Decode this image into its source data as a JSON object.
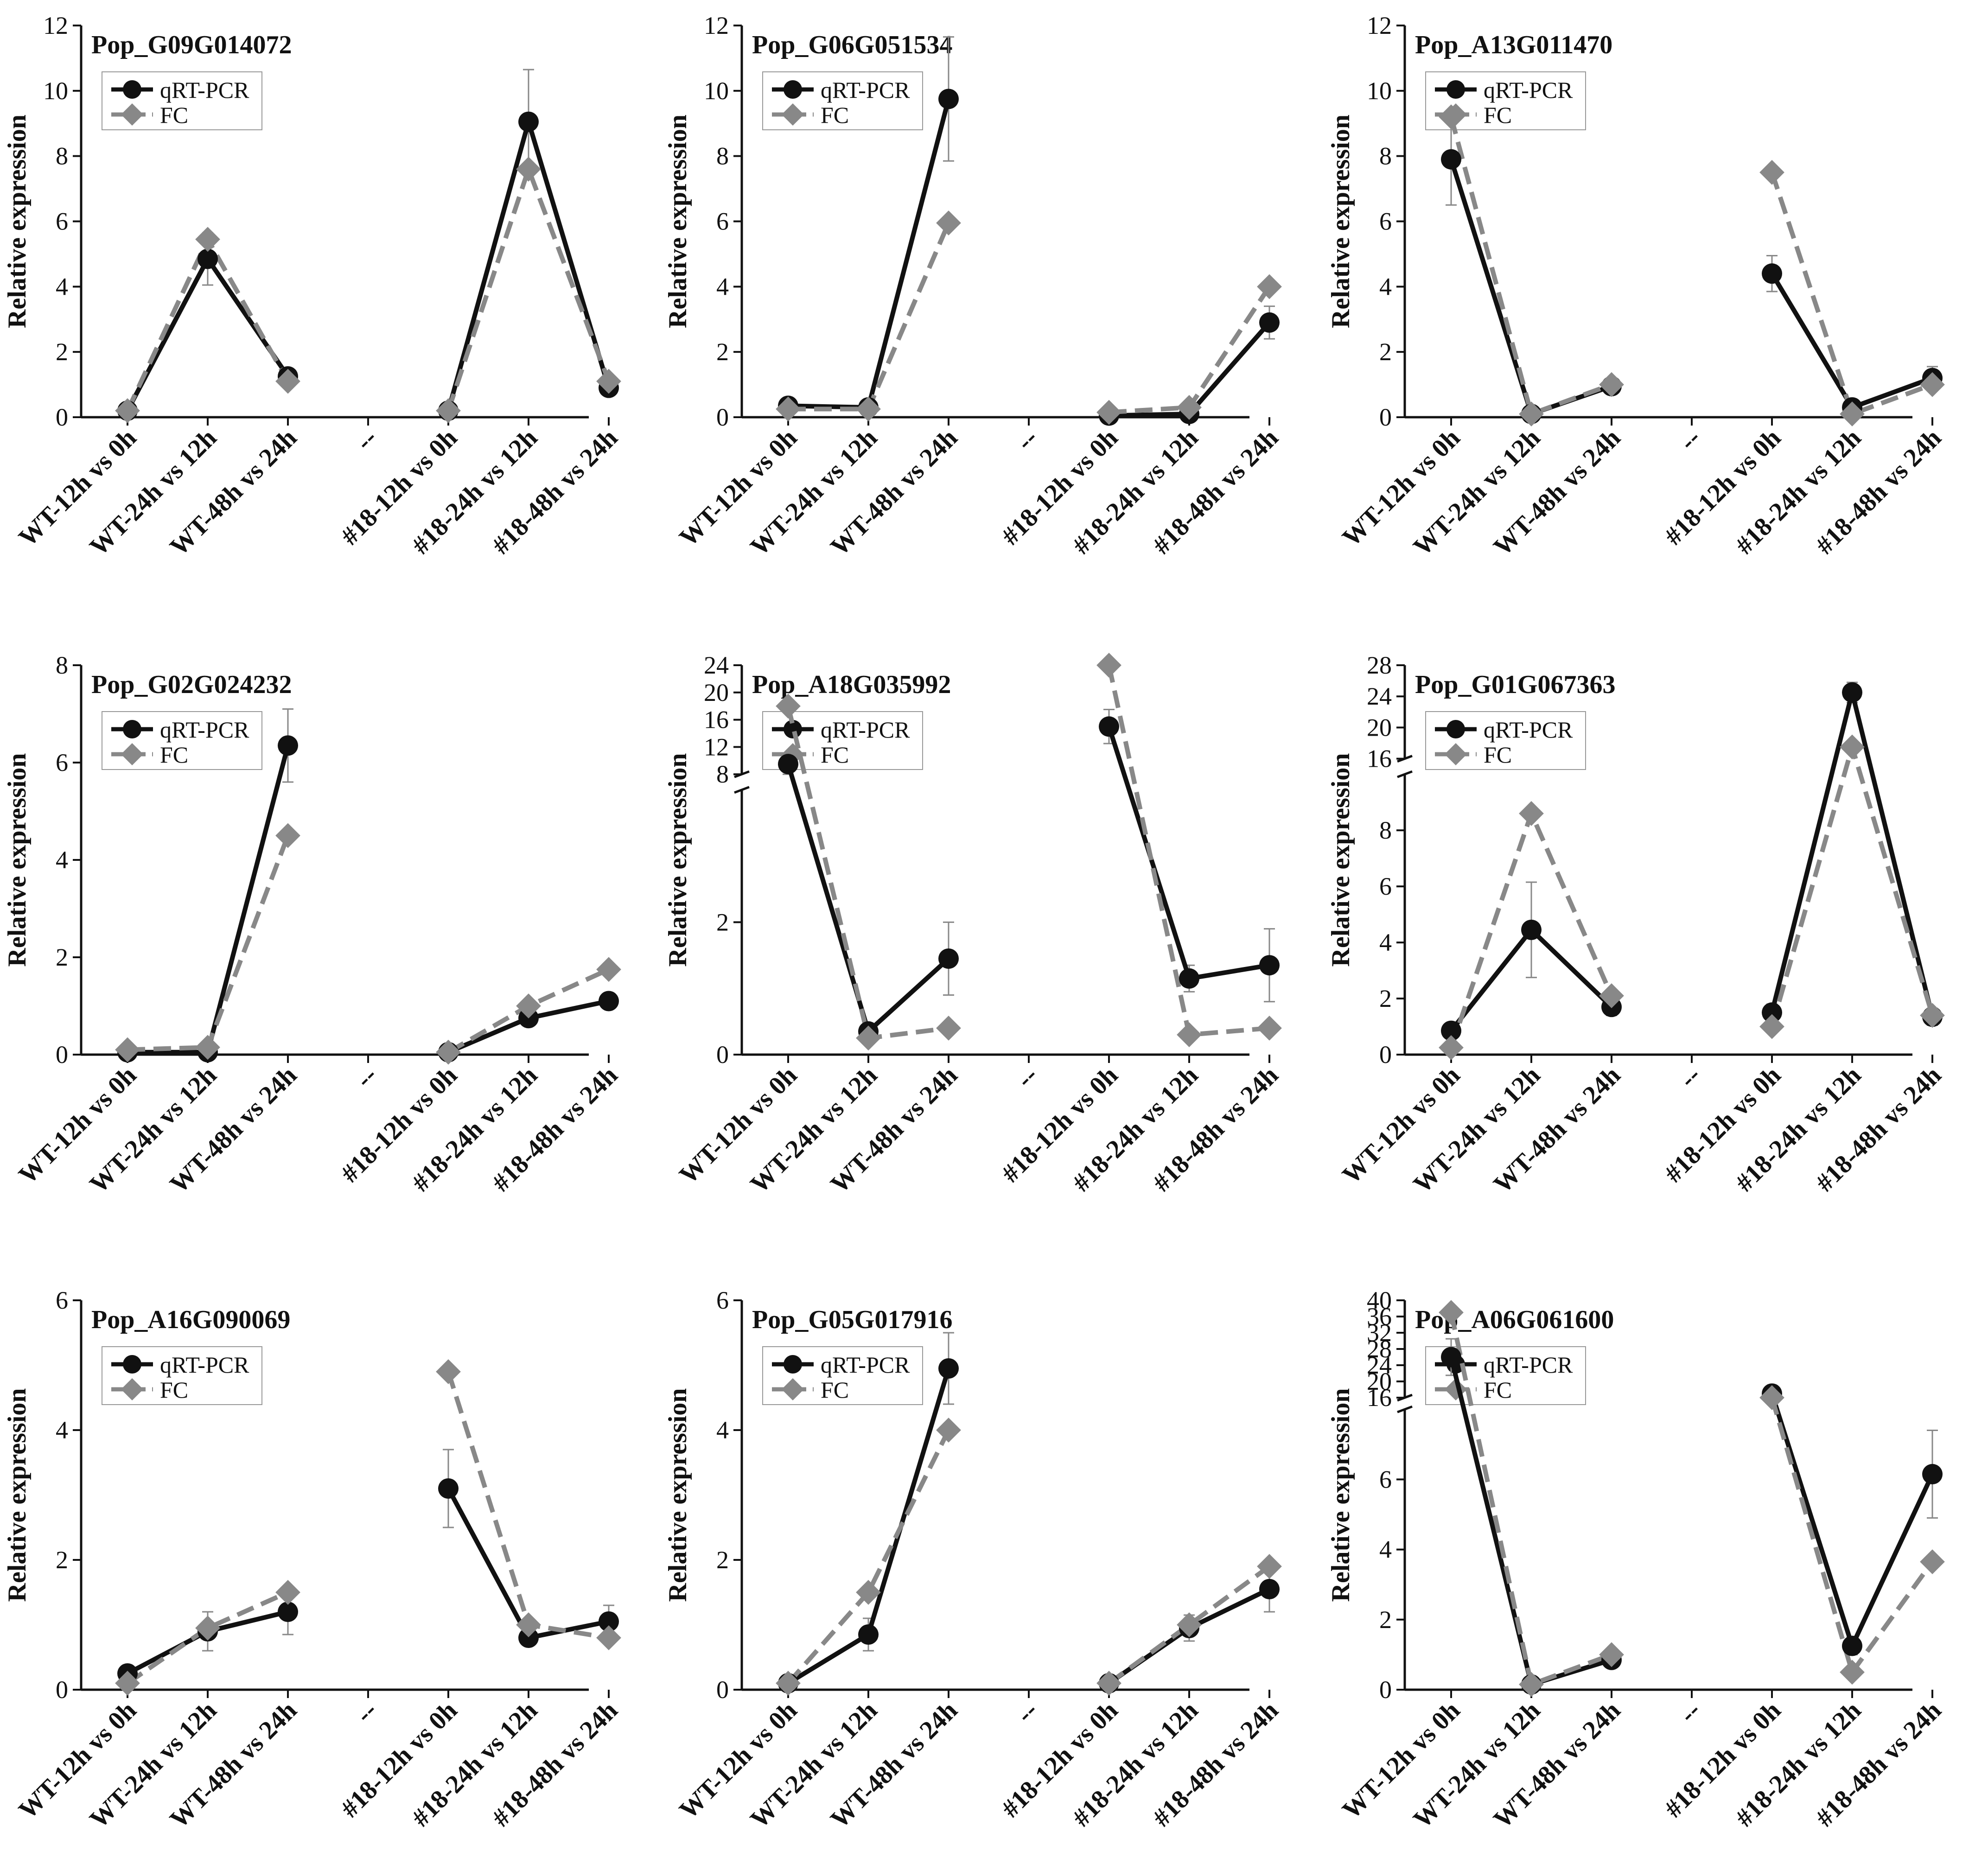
{
  "legend": {
    "qrt_label": "qRT-PCR",
    "fc_label": "FC"
  },
  "y_axis_label": "Relative expression",
  "x_categories": [
    "WT-12h vs 0h",
    "WT-24h vs 12h",
    "WT-48h vs 24h",
    "--",
    "#18-12h vs 0h",
    "#18-24h vs 12h",
    "#18-48h vs 24h"
  ],
  "colors": {
    "qrt": "#111111",
    "fc": "#888888",
    "axis": "#111111",
    "errorbar": "#888888"
  },
  "chart_data": [
    {
      "type": "line",
      "title": "Pop_G09G014072",
      "ylim": [
        0,
        12
      ],
      "yticks": [
        0,
        2,
        4,
        6,
        8,
        10,
        12
      ],
      "categories": [
        "WT-12h vs 0h",
        "WT-24h vs 12h",
        "WT-48h vs 24h",
        "--",
        "#18-12h vs 0h",
        "#18-24h vs 12h",
        "#18-48h vs 24h"
      ],
      "series": [
        {
          "name": "qRT-PCR",
          "values": [
            0.2,
            4.85,
            1.25,
            null,
            0.2,
            9.05,
            0.9
          ],
          "errors": [
            0.1,
            0.8,
            0.2,
            null,
            0.1,
            1.6,
            0.2
          ]
        },
        {
          "name": "FC",
          "values": [
            0.2,
            5.45,
            1.1,
            null,
            0.2,
            7.6,
            1.1
          ]
        }
      ]
    },
    {
      "type": "line",
      "title": "Pop_G06G051534",
      "ylim": [
        0,
        12
      ],
      "yticks": [
        0,
        2,
        4,
        6,
        8,
        10,
        12
      ],
      "categories": [
        "WT-12h vs 0h",
        "WT-24h vs 12h",
        "WT-48h vs 24h",
        "--",
        "#18-12h vs 0h",
        "#18-24h vs 12h",
        "#18-48h vs 24h"
      ],
      "series": [
        {
          "name": "qRT-PCR",
          "values": [
            0.35,
            0.3,
            9.75,
            null,
            0.05,
            0.1,
            2.9
          ],
          "errors": [
            0.1,
            0.1,
            1.9,
            null,
            0.05,
            0.1,
            0.5
          ]
        },
        {
          "name": "FC",
          "values": [
            0.25,
            0.25,
            5.95,
            null,
            0.15,
            0.3,
            4.0
          ]
        }
      ]
    },
    {
      "type": "line",
      "title": "Pop_A13G011470",
      "ylim": [
        0,
        12
      ],
      "yticks": [
        0,
        2,
        4,
        6,
        8,
        10,
        12
      ],
      "categories": [
        "WT-12h vs 0h",
        "WT-24h vs 12h",
        "WT-48h vs 24h",
        "--",
        "#18-12h vs 0h",
        "#18-24h vs 12h",
        "#18-48h vs 24h"
      ],
      "series": [
        {
          "name": "qRT-PCR",
          "values": [
            7.9,
            0.1,
            0.95,
            null,
            4.4,
            0.3,
            1.2
          ],
          "errors": [
            1.4,
            0.05,
            0.1,
            null,
            0.55,
            0.1,
            0.35
          ]
        },
        {
          "name": "FC",
          "values": [
            9.2,
            0.1,
            1.0,
            null,
            7.5,
            0.1,
            1.0
          ]
        }
      ]
    },
    {
      "type": "line",
      "title": "Pop_G02G024232",
      "ylim": [
        0,
        8
      ],
      "yticks": [
        0,
        2,
        4,
        6,
        8
      ],
      "categories": [
        "WT-12h vs 0h",
        "WT-24h vs 12h",
        "WT-48h vs 24h",
        "--",
        "#18-12h vs 0h",
        "#18-24h vs 12h",
        "#18-48h vs 24h"
      ],
      "series": [
        {
          "name": "qRT-PCR",
          "values": [
            0.05,
            0.05,
            6.35,
            null,
            0.05,
            0.75,
            1.1
          ],
          "errors": [
            0.02,
            0.05,
            0.75,
            null,
            0.02,
            0.1,
            0.15
          ]
        },
        {
          "name": "FC",
          "values": [
            0.1,
            0.15,
            4.5,
            null,
            0.05,
            1.0,
            1.75
          ]
        }
      ]
    },
    {
      "type": "line",
      "title": "Pop_A18G035992",
      "ylim": [
        0,
        24
      ],
      "yticks": [
        0,
        2,
        8,
        12,
        16,
        20,
        24
      ],
      "categories": [
        "WT-12h vs 0h",
        "WT-24h vs 12h",
        "WT-48h vs 24h",
        "--",
        "#18-12h vs 0h",
        "#18-24h vs 12h",
        "#18-48h vs 24h"
      ],
      "series": [
        {
          "name": "qRT-PCR",
          "values": [
            9.5,
            0.35,
            1.45,
            null,
            15.0,
            1.15,
            1.35
          ],
          "errors": [
            1.5,
            0.05,
            0.55,
            null,
            2.5,
            0.2,
            0.55
          ]
        },
        {
          "name": "FC",
          "values": [
            18.0,
            0.25,
            0.4,
            null,
            24.0,
            0.3,
            0.4
          ]
        }
      ]
    },
    {
      "type": "line",
      "title": "Pop_G01G067363",
      "ylim": [
        0,
        28
      ],
      "yticks": [
        0,
        2,
        4,
        6,
        8,
        16,
        20,
        24,
        28
      ],
      "categories": [
        "WT-12h vs 0h",
        "WT-24h vs 12h",
        "WT-48h vs 24h",
        "--",
        "#18-12h vs 0h",
        "#18-24h vs 12h",
        "#18-48h vs 24h"
      ],
      "series": [
        {
          "name": "qRT-PCR",
          "values": [
            0.85,
            4.45,
            1.7,
            null,
            1.5,
            24.5,
            1.35
          ],
          "errors": [
            0.2,
            1.7,
            0.3,
            null,
            0.3,
            1.3,
            0.3
          ]
        },
        {
          "name": "FC",
          "values": [
            0.25,
            8.6,
            2.1,
            null,
            1.0,
            17.5,
            1.4
          ]
        }
      ]
    },
    {
      "type": "line",
      "title": "Pop_A16G090069",
      "ylim": [
        0,
        6
      ],
      "yticks": [
        0,
        2,
        4,
        6
      ],
      "categories": [
        "WT-12h vs 0h",
        "WT-24h vs 12h",
        "WT-48h vs 24h",
        "--",
        "#18-12h vs 0h",
        "#18-24h vs 12h",
        "#18-48h vs 24h"
      ],
      "series": [
        {
          "name": "qRT-PCR",
          "values": [
            0.25,
            0.9,
            1.2,
            null,
            3.1,
            0.8,
            1.05
          ],
          "errors": [
            0.1,
            0.3,
            0.35,
            null,
            0.6,
            0.1,
            0.25
          ]
        },
        {
          "name": "FC",
          "values": [
            0.1,
            0.95,
            1.5,
            null,
            4.9,
            1.0,
            0.8
          ]
        }
      ]
    },
    {
      "type": "line",
      "title": "Pop_G05G017916",
      "ylim": [
        0,
        6
      ],
      "yticks": [
        0,
        2,
        4,
        6
      ],
      "categories": [
        "WT-12h vs 0h",
        "WT-24h vs 12h",
        "WT-48h vs 24h",
        "--",
        "#18-12h vs 0h",
        "#18-24h vs 12h",
        "#18-48h vs 24h"
      ],
      "series": [
        {
          "name": "qRT-PCR",
          "values": [
            0.1,
            0.85,
            4.95,
            null,
            0.1,
            0.95,
            1.55
          ],
          "errors": [
            0.05,
            0.25,
            0.55,
            null,
            0.05,
            0.2,
            0.35
          ]
        },
        {
          "name": "FC",
          "values": [
            0.1,
            1.5,
            4.0,
            null,
            0.1,
            1.0,
            1.9
          ]
        }
      ]
    },
    {
      "type": "line",
      "title": "Pop_A06G061600",
      "ylim": [
        0,
        40
      ],
      "yticks": [
        0,
        2,
        4,
        6,
        16,
        20,
        24,
        28,
        32,
        36,
        40
      ],
      "categories": [
        "WT-12h vs 0h",
        "WT-24h vs 12h",
        "WT-48h vs 24h",
        "--",
        "#18-12h vs 0h",
        "#18-24h vs 12h",
        "#18-48h vs 24h"
      ],
      "series": [
        {
          "name": "qRT-PCR",
          "values": [
            26.0,
            0.15,
            0.85,
            null,
            17.0,
            1.25,
            6.15
          ],
          "errors": [
            4.5,
            0.05,
            0.1,
            null,
            1.5,
            0.25,
            1.25
          ]
        },
        {
          "name": "FC",
          "values": [
            37.0,
            0.15,
            1.0,
            null,
            16.0,
            0.5,
            3.65
          ]
        }
      ]
    }
  ]
}
